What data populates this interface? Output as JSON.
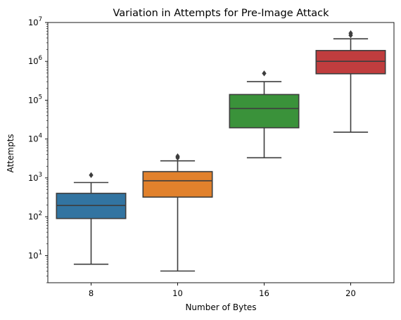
{
  "chart_data": {
    "type": "boxplot",
    "title": "Variation in Attempts for Pre-Image Attack",
    "xlabel": "Number of Bytes",
    "ylabel": "Attempts",
    "yscale": "log",
    "ylim": [
      2,
      10000000
    ],
    "grid": false,
    "legend": "none",
    "yticks": [
      {
        "base": "10",
        "exp": "1",
        "value": 10
      },
      {
        "base": "10",
        "exp": "2",
        "value": 100
      },
      {
        "base": "10",
        "exp": "3",
        "value": 1000
      },
      {
        "base": "10",
        "exp": "4",
        "value": 10000
      },
      {
        "base": "10",
        "exp": "5",
        "value": 100000
      },
      {
        "base": "10",
        "exp": "6",
        "value": 1000000
      },
      {
        "base": "10",
        "exp": "7",
        "value": 10000000
      }
    ],
    "categories": [
      "8",
      "10",
      "16",
      "20"
    ],
    "boxes": [
      {
        "category": "8",
        "whisker_low": 6,
        "q1": 90,
        "median": 195,
        "q3": 400,
        "whisker_high": 760,
        "outliers": [
          1180
        ],
        "color": "#3274a1"
      },
      {
        "category": "10",
        "whisker_low": 4,
        "q1": 320,
        "median": 840,
        "q3": 1450,
        "whisker_high": 2750,
        "outliers": [
          3300,
          3600
        ],
        "color": "#e1812c"
      },
      {
        "category": "16",
        "whisker_low": 3300,
        "q1": 19500,
        "median": 61000,
        "q3": 140000,
        "whisker_high": 300000,
        "outliers": [
          490000
        ],
        "color": "#3a923a"
      },
      {
        "category": "20",
        "whisker_low": 15000,
        "q1": 480000,
        "median": 1000000,
        "q3": 1900000,
        "whisker_high": 3800000,
        "outliers": [
          4700000,
          5300000
        ],
        "color": "#c03d3e"
      }
    ]
  }
}
